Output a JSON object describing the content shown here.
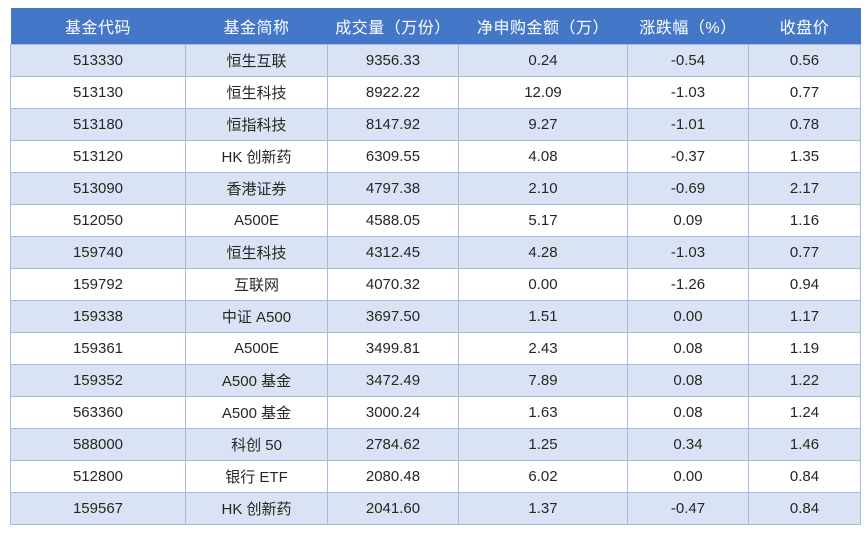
{
  "chart_data": {
    "type": "table",
    "title": "",
    "columns": [
      "基金代码",
      "基金简称",
      "成交量（万份）",
      "净申购金额（万）",
      "涨跌幅（%）",
      "收盘价"
    ],
    "rows": [
      [
        "513330",
        "恒生互联",
        "9356.33",
        "0.24",
        "-0.54",
        "0.56"
      ],
      [
        "513130",
        "恒生科技",
        "8922.22",
        "12.09",
        "-1.03",
        "0.77"
      ],
      [
        "513180",
        "恒指科技",
        "8147.92",
        "9.27",
        "-1.01",
        "0.78"
      ],
      [
        "513120",
        "HK 创新药",
        "6309.55",
        "4.08",
        "-0.37",
        "1.35"
      ],
      [
        "513090",
        "香港证券",
        "4797.38",
        "2.10",
        "-0.69",
        "2.17"
      ],
      [
        "512050",
        "A500E",
        "4588.05",
        "5.17",
        "0.09",
        "1.16"
      ],
      [
        "159740",
        "恒生科技",
        "4312.45",
        "4.28",
        "-1.03",
        "0.77"
      ],
      [
        "159792",
        "互联网",
        "4070.32",
        "0.00",
        "-1.26",
        "0.94"
      ],
      [
        "159338",
        "中证 A500",
        "3697.50",
        "1.51",
        "0.00",
        "1.17"
      ],
      [
        "159361",
        "A500E",
        "3499.81",
        "2.43",
        "0.08",
        "1.19"
      ],
      [
        "159352",
        "A500 基金",
        "3472.49",
        "7.89",
        "0.08",
        "1.22"
      ],
      [
        "563360",
        "A500 基金",
        "3000.24",
        "1.63",
        "0.08",
        "1.24"
      ],
      [
        "588000",
        "科创 50",
        "2784.62",
        "1.25",
        "0.34",
        "1.46"
      ],
      [
        "512800",
        "银行 ETF",
        "2080.48",
        "6.02",
        "0.00",
        "0.84"
      ],
      [
        "159567",
        "HK 创新药",
        "2041.60",
        "1.37",
        "-0.47",
        "0.84"
      ]
    ],
    "layout_hints": {
      "banded_rows": true,
      "first_data_row_banded": true,
      "all_cells_centered": true
    }
  },
  "colors": {
    "header_bg": "#4577C9",
    "header_text": "#FFFFFF",
    "band_bg": "#DAE3F3",
    "plain_bg": "#FFFFFF",
    "border": "#A8BBDF",
    "text": "#262626"
  }
}
